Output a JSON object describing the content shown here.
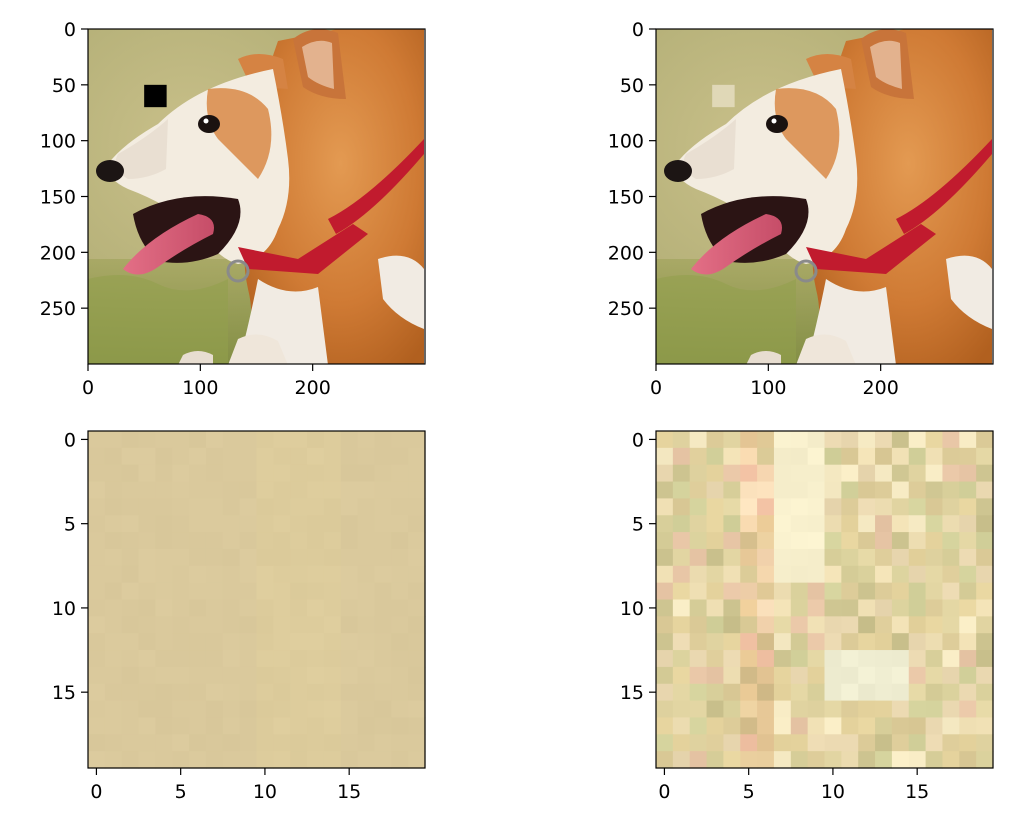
{
  "chart_data": [
    {
      "type": "heatmap",
      "panel": "top-left",
      "content": "photo of a corgi in profile (head facing left, red collar with metal ring, tongue out) on a blurred green/beige grass background, with a black square mask patch",
      "mask_patch": {
        "x_range": [
          50,
          70
        ],
        "y_range": [
          50,
          70
        ],
        "color": "#000000"
      },
      "xlim": [
        0,
        300
      ],
      "ylim": [
        300,
        0
      ],
      "x_ticks": [
        0,
        100,
        200
      ],
      "y_ticks": [
        0,
        50,
        100,
        150,
        200,
        250
      ],
      "grid": false
    },
    {
      "type": "heatmap",
      "panel": "top-right",
      "content": "the same corgi photo with the masked patch inpainted (faint light artifact where the black square was)",
      "xlim": [
        0,
        300
      ],
      "ylim": [
        300,
        0
      ],
      "x_ticks": [
        0,
        100,
        200
      ],
      "y_ticks": [
        0,
        50,
        100,
        150,
        200,
        250
      ],
      "grid": false
    },
    {
      "type": "heatmap",
      "panel": "bottom-left",
      "content": "20x20 pixel crop that is nearly uniform tan/beige",
      "base_color": "#dac99c",
      "xlim": [
        -0.5,
        19.5
      ],
      "ylim": [
        19.5,
        -0.5
      ],
      "x_ticks": [
        0,
        5,
        10,
        15
      ],
      "y_ticks": [
        0,
        5,
        10,
        15
      ],
      "grid": false
    },
    {
      "type": "heatmap",
      "panel": "bottom-right",
      "content": "20x20 pixel crop of the reconstructed patch: varied pastel beige, cream, pink and light green blocks",
      "palette": [
        "#dccb98",
        "#e6d49e",
        "#f0e0b4",
        "#f7ebc4",
        "#d8cf9a",
        "#e8c6a6",
        "#d4d29c",
        "#e3d6a3",
        "#cbc28e",
        "#ead8b0"
      ],
      "xlim": [
        -0.5,
        19.5
      ],
      "ylim": [
        19.5,
        -0.5
      ],
      "x_ticks": [
        0,
        5,
        10,
        15
      ],
      "y_ticks": [
        0,
        5,
        10,
        15
      ],
      "grid": false
    }
  ]
}
